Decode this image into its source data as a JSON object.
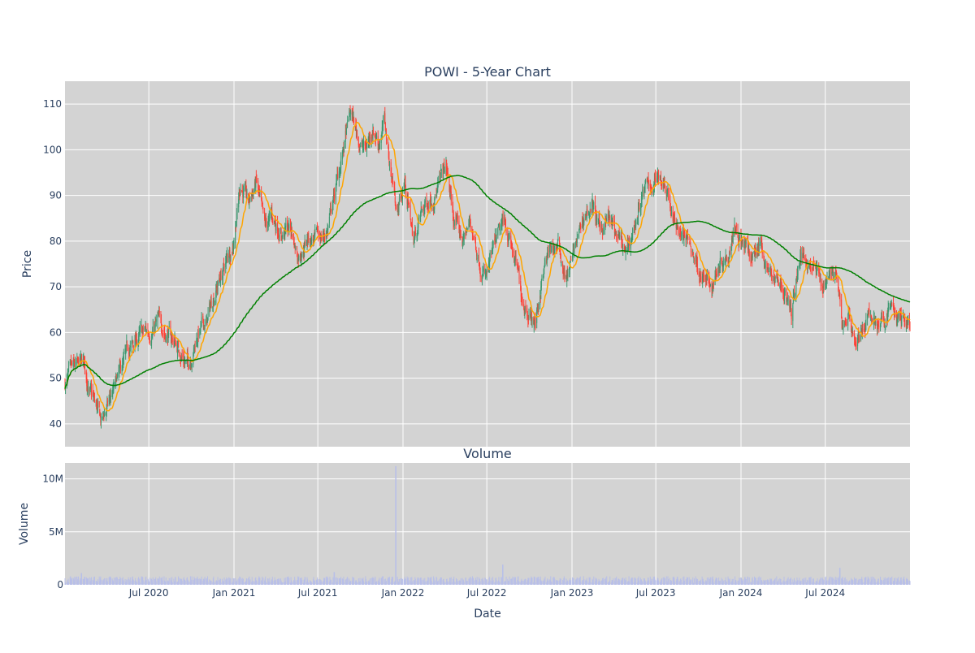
{
  "chart_data": [
    {
      "type": "candlestick",
      "title": "POWI - 5-Year Chart",
      "xlabel": "",
      "ylabel": "Price",
      "x_range": [
        "2020-01-02",
        "2024-12-31"
      ],
      "ylim": [
        35,
        115
      ],
      "y_ticks": [
        40,
        50,
        60,
        70,
        80,
        90,
        100,
        110
      ],
      "grid": true,
      "colors": {
        "up": "#3d9970",
        "down": "#ff4136",
        "ma_short": "#ffa500",
        "ma_long": "#008000",
        "plot_bg": "#d3d3d3",
        "grid": "#ffffff"
      },
      "close_anchors": [
        [
          "2020-01-02",
          49
        ],
        [
          "2020-01-20",
          51
        ],
        [
          "2020-02-12",
          53
        ],
        [
          "2020-02-24",
          47
        ],
        [
          "2020-03-10",
          43
        ],
        [
          "2020-03-20",
          40
        ],
        [
          "2020-04-08",
          45
        ],
        [
          "2020-04-28",
          50
        ],
        [
          "2020-05-20",
          56
        ],
        [
          "2020-06-10",
          59
        ],
        [
          "2020-06-30",
          60
        ],
        [
          "2020-07-20",
          62
        ],
        [
          "2020-08-10",
          60
        ],
        [
          "2020-08-31",
          57
        ],
        [
          "2020-09-24",
          53
        ],
        [
          "2020-10-15",
          60
        ],
        [
          "2020-11-03",
          62
        ],
        [
          "2020-11-20",
          69
        ],
        [
          "2020-12-10",
          74
        ],
        [
          "2020-12-30",
          80
        ],
        [
          "2021-01-15",
          93
        ],
        [
          "2021-02-01",
          88
        ],
        [
          "2021-02-18",
          93
        ],
        [
          "2021-03-08",
          82
        ],
        [
          "2021-03-24",
          85
        ],
        [
          "2021-04-14",
          82
        ],
        [
          "2021-05-03",
          83
        ],
        [
          "2021-05-18",
          77
        ],
        [
          "2021-06-08",
          81
        ],
        [
          "2021-07-01",
          80
        ],
        [
          "2021-07-20",
          82
        ],
        [
          "2021-08-10",
          92
        ],
        [
          "2021-08-25",
          100
        ],
        [
          "2021-09-10",
          108
        ],
        [
          "2021-09-28",
          102
        ],
        [
          "2021-10-12",
          100
        ],
        [
          "2021-10-28",
          105
        ],
        [
          "2021-11-10",
          102
        ],
        [
          "2021-11-22",
          106
        ],
        [
          "2021-12-06",
          95
        ],
        [
          "2021-12-20",
          87
        ],
        [
          "2022-01-05",
          93
        ],
        [
          "2022-01-24",
          80
        ],
        [
          "2022-02-10",
          86
        ],
        [
          "2022-03-01",
          90
        ],
        [
          "2022-03-18",
          92
        ],
        [
          "2022-04-04",
          96
        ],
        [
          "2022-04-20",
          85
        ],
        [
          "2022-05-10",
          80
        ],
        [
          "2022-05-26",
          84
        ],
        [
          "2022-06-16",
          76
        ],
        [
          "2022-07-01",
          72
        ],
        [
          "2022-07-20",
          79
        ],
        [
          "2022-08-10",
          84
        ],
        [
          "2022-08-25",
          78
        ],
        [
          "2022-09-15",
          68
        ],
        [
          "2022-09-30",
          65
        ],
        [
          "2022-10-14",
          62
        ],
        [
          "2022-10-28",
          72
        ],
        [
          "2022-11-15",
          78
        ],
        [
          "2022-12-01",
          79
        ],
        [
          "2022-12-20",
          72
        ],
        [
          "2023-01-10",
          79
        ],
        [
          "2023-01-30",
          86
        ],
        [
          "2023-02-14",
          88
        ],
        [
          "2023-03-01",
          82
        ],
        [
          "2023-03-20",
          85
        ],
        [
          "2023-04-10",
          80
        ],
        [
          "2023-04-28",
          76
        ],
        [
          "2023-05-15",
          83
        ],
        [
          "2023-06-01",
          90
        ],
        [
          "2023-06-20",
          92
        ],
        [
          "2023-07-10",
          95
        ],
        [
          "2023-07-27",
          92
        ],
        [
          "2023-08-08",
          84
        ],
        [
          "2023-08-25",
          82
        ],
        [
          "2023-09-12",
          79
        ],
        [
          "2023-09-29",
          75
        ],
        [
          "2023-10-16",
          71
        ],
        [
          "2023-10-31",
          70
        ],
        [
          "2023-11-15",
          76
        ],
        [
          "2023-12-04",
          78
        ],
        [
          "2023-12-18",
          85
        ],
        [
          "2024-01-05",
          79
        ],
        [
          "2024-01-24",
          76
        ],
        [
          "2024-02-12",
          80
        ],
        [
          "2024-02-29",
          73
        ],
        [
          "2024-03-15",
          72
        ],
        [
          "2024-04-01",
          70
        ],
        [
          "2024-04-19",
          64
        ],
        [
          "2024-05-06",
          76
        ],
        [
          "2024-05-21",
          77
        ],
        [
          "2024-06-06",
          75
        ],
        [
          "2024-06-24",
          70
        ],
        [
          "2024-07-10",
          74
        ],
        [
          "2024-07-25",
          72
        ],
        [
          "2024-08-06",
          61
        ],
        [
          "2024-08-20",
          64
        ],
        [
          "2024-09-06",
          58
        ],
        [
          "2024-09-24",
          62
        ],
        [
          "2024-10-14",
          63
        ],
        [
          "2024-10-31",
          61
        ],
        [
          "2024-11-18",
          66
        ],
        [
          "2024-12-05",
          63
        ],
        [
          "2024-12-31",
          62
        ]
      ],
      "ma_short_label": "",
      "ma_long_label": ""
    },
    {
      "type": "bar",
      "title": "Volume",
      "xlabel": "Date",
      "ylabel": "Volume",
      "ylim": [
        0,
        11500000
      ],
      "y_ticks": [
        0,
        5000000,
        10000000
      ],
      "y_tick_labels": [
        "0",
        "5M",
        "10M"
      ],
      "x_ticks": [
        "2020-07-01",
        "2021-01-01",
        "2021-07-01",
        "2022-01-01",
        "2022-07-01",
        "2023-01-01",
        "2023-07-01",
        "2024-01-01",
        "2024-07-01"
      ],
      "x_tick_labels": [
        "Jul 2020",
        "Jan 2021",
        "Jul 2021",
        "Jan 2022",
        "Jul 2022",
        "Jan 2023",
        "Jul 2023",
        "Jan 2024",
        "Jul 2024"
      ],
      "bar_color": "#b8bfe8",
      "typical_volume": 450000,
      "spikes": [
        [
          "2021-12-17",
          11200000
        ],
        [
          "2022-08-05",
          1900000
        ],
        [
          "2024-08-02",
          1600000
        ],
        [
          "2021-08-06",
          1200000
        ],
        [
          "2020-02-07",
          1100000
        ]
      ]
    }
  ]
}
